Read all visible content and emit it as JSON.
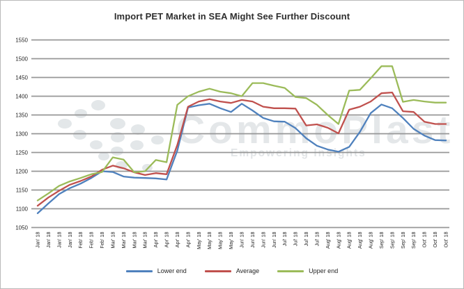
{
  "watermark": {
    "brand": "CommoPlast",
    "tagline": "Empowering Insights"
  },
  "chart_data": {
    "type": "line",
    "title": "Import PET Market in SEA Might See Further Discount",
    "xlabel": "",
    "ylabel": "",
    "ylim": [
      1050,
      1550
    ],
    "y_ticks": [
      1050,
      1100,
      1150,
      1200,
      1250,
      1300,
      1350,
      1400,
      1450,
      1500,
      1550
    ],
    "grid": "horizontal",
    "legend_position": "bottom",
    "axis_color": "#969696",
    "categories": [
      "Jan' 18",
      "Jan' 18",
      "Jan' 18",
      "Jan' 18",
      "Feb' 18",
      "Feb' 18",
      "Feb' 18",
      "Mar' 18",
      "Mar' 18",
      "Mar' 18",
      "Mar' 18",
      "Apr' 18",
      "Apr' 18",
      "Apr' 18",
      "Apr' 18",
      "May' 18",
      "May' 18",
      "May' 18",
      "May' 18",
      "Jun' 18",
      "Jun' 18",
      "Jun' 18",
      "Jun' 18",
      "Jul' 18",
      "Jul' 18",
      "Jul' 18",
      "Jul' 18",
      "Aug' 18",
      "Aug' 18",
      "Aug' 18",
      "Aug' 18",
      "Aug' 18",
      "Sep' 18",
      "Sep' 18",
      "Sep' 18",
      "Sep' 18",
      "Oct' 18",
      "Oct' 18",
      "Oct' 18"
    ],
    "series": [
      {
        "name": "Lower end",
        "color": "#4f81bd",
        "values": [
          1088,
          1114,
          1139,
          1155,
          1167,
          1182,
          1200,
          1198,
          1186,
          1183,
          1182,
          1181,
          1178,
          1255,
          1370,
          1376,
          1380,
          1368,
          1358,
          1380,
          1362,
          1342,
          1333,
          1332,
          1315,
          1288,
          1268,
          1258,
          1252,
          1265,
          1305,
          1355,
          1378,
          1368,
          1342,
          1313,
          1295,
          1283,
          1282
        ]
      },
      {
        "name": "Average",
        "color": "#c0504d",
        "values": [
          1108,
          1130,
          1148,
          1164,
          1174,
          1186,
          1204,
          1215,
          1208,
          1197,
          1190,
          1195,
          1192,
          1270,
          1372,
          1386,
          1392,
          1386,
          1382,
          1390,
          1386,
          1372,
          1368,
          1368,
          1367,
          1322,
          1325,
          1316,
          1301,
          1364,
          1372,
          1386,
          1408,
          1410,
          1360,
          1358,
          1332,
          1326,
          1326
        ]
      },
      {
        "name": "Upper end",
        "color": "#9bbb59",
        "values": [
          1122,
          1141,
          1161,
          1173,
          1182,
          1192,
          1198,
          1237,
          1231,
          1197,
          1200,
          1230,
          1224,
          1377,
          1400,
          1412,
          1420,
          1412,
          1408,
          1400,
          1435,
          1435,
          1428,
          1422,
          1398,
          1395,
          1377,
          1350,
          1326,
          1415,
          1417,
          1448,
          1480,
          1480,
          1385,
          1390,
          1386,
          1383,
          1383
        ]
      }
    ]
  }
}
